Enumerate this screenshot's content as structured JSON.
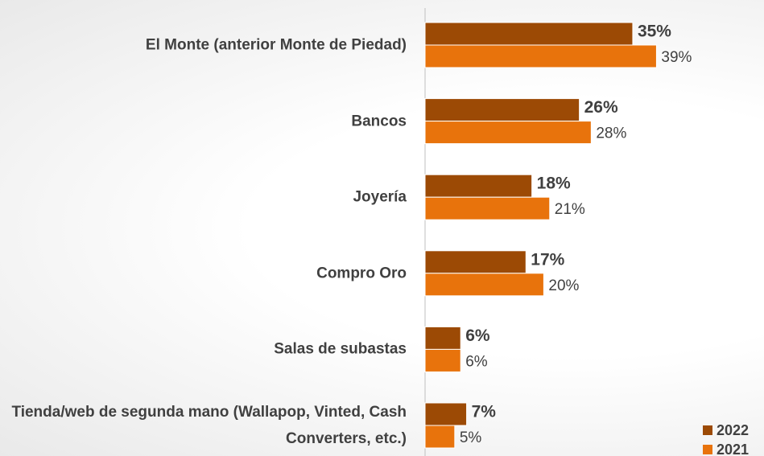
{
  "chart_data": {
    "type": "bar",
    "orientation": "horizontal",
    "categories": [
      "El Monte (anterior Monte de Piedad)",
      "Bancos",
      "Joyería",
      "Compro Oro",
      "Salas de subastas",
      "Tienda/web de segunda mano (Wallapop, Vinted, Cash Converters, etc.)"
    ],
    "series": [
      {
        "name": "2022",
        "color": "#9c4a05",
        "values": [
          35,
          26,
          18,
          17,
          6,
          7
        ],
        "value_labels": [
          "35%",
          "26%",
          "18%",
          "17%",
          "6%",
          "7%"
        ]
      },
      {
        "name": "2021",
        "color": "#e8730c",
        "values": [
          39,
          28,
          21,
          20,
          6,
          5
        ],
        "value_labels": [
          "39%",
          "28%",
          "21%",
          "20%",
          "6%",
          "5%"
        ]
      }
    ],
    "legend": "bottom-right"
  }
}
